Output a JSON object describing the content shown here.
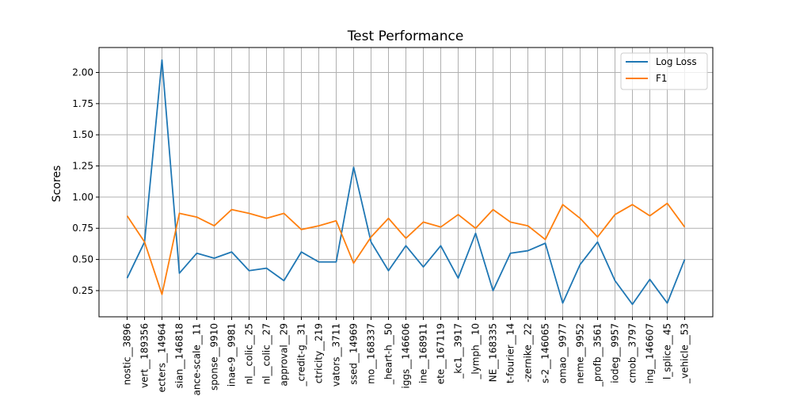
{
  "chart_data": {
    "type": "line",
    "title": "Test Performance",
    "xlabel": "",
    "ylabel": "Scores",
    "ylim": [
      0.04,
      2.2
    ],
    "yticks": [
      0.25,
      0.5,
      0.75,
      1.0,
      1.25,
      1.5,
      1.75,
      2.0
    ],
    "ytick_labels": [
      "0.25",
      "0.50",
      "0.75",
      "1.00",
      "1.25",
      "1.50",
      "1.75",
      "2.00"
    ],
    "grid": true,
    "legend_position": "top-right",
    "categories": [
      "nostic__3896",
      "vert__189356",
      "ecters__14964",
      "sian__146818",
      "ance-scale__11",
      "sponse__9910",
      "inae-9__9981",
      "nl__colic__25",
      "nl__colic__27",
      "approval__29",
      "_credit-g__31",
      "ctricity__219",
      "vators__3711",
      "ssed__14969",
      "mo__168337",
      "_heart-h__50",
      "iggs__146606",
      "ine__168911",
      "ete__167119",
      "_kc1__3917",
      "_lymph__10",
      "NE__168335",
      "t-fourier__14",
      "-zernike__22",
      "s-2__146065",
      "omao__9977",
      "neme__9952",
      "_profb__3561",
      "iodeg__9957",
      "cmob__3797",
      "ing__146607",
      "l_splice__45",
      "_vehicle__53"
    ],
    "series": [
      {
        "name": "Log Loss",
        "color": "#1f77b4",
        "values": [
          0.35,
          0.64,
          2.1,
          0.39,
          0.55,
          0.51,
          0.56,
          0.41,
          0.43,
          0.33,
          0.56,
          0.48,
          0.48,
          1.24,
          0.64,
          0.41,
          0.61,
          0.44,
          0.61,
          0.35,
          0.71,
          0.25,
          0.55,
          0.57,
          0.63,
          0.15,
          0.46,
          0.64,
          0.33,
          0.14,
          0.34,
          0.15,
          0.5
        ]
      },
      {
        "name": "F1",
        "color": "#ff7f0e",
        "values": [
          0.85,
          0.64,
          0.22,
          0.87,
          0.84,
          0.77,
          0.9,
          0.87,
          0.83,
          0.87,
          0.74,
          0.77,
          0.81,
          0.47,
          0.68,
          0.83,
          0.67,
          0.8,
          0.76,
          0.86,
          0.75,
          0.9,
          0.8,
          0.77,
          0.66,
          0.94,
          0.83,
          0.68,
          0.86,
          0.94,
          0.85,
          0.95,
          0.76
        ]
      }
    ]
  }
}
